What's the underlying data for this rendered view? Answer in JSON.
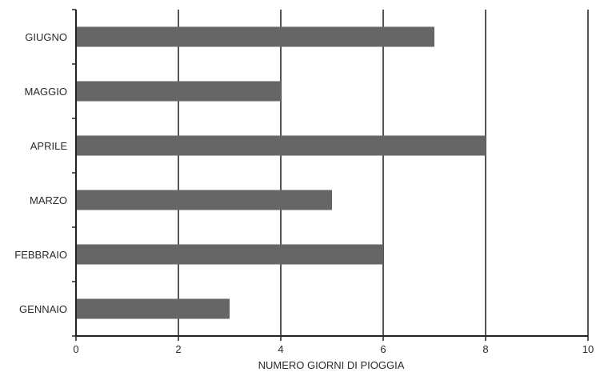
{
  "chart_data": {
    "type": "bar",
    "orientation": "horizontal",
    "title": "",
    "xlabel": "NUMERO GIORNI DI PIOGGIA",
    "ylabel": "",
    "categories": [
      "GENNAIO",
      "FEBBRAIO",
      "MARZO",
      "APRILE",
      "MAGGIO",
      "GIUGNO"
    ],
    "values": [
      3,
      6,
      5,
      8,
      4,
      7
    ],
    "xlim": [
      0,
      10
    ],
    "xticks": [
      "0",
      "2",
      "4",
      "6",
      "8",
      "10"
    ],
    "grid": "vertical",
    "legend": "none",
    "bar_color": "#666666",
    "grid_color": "#555555",
    "axis_color": "#222222"
  }
}
